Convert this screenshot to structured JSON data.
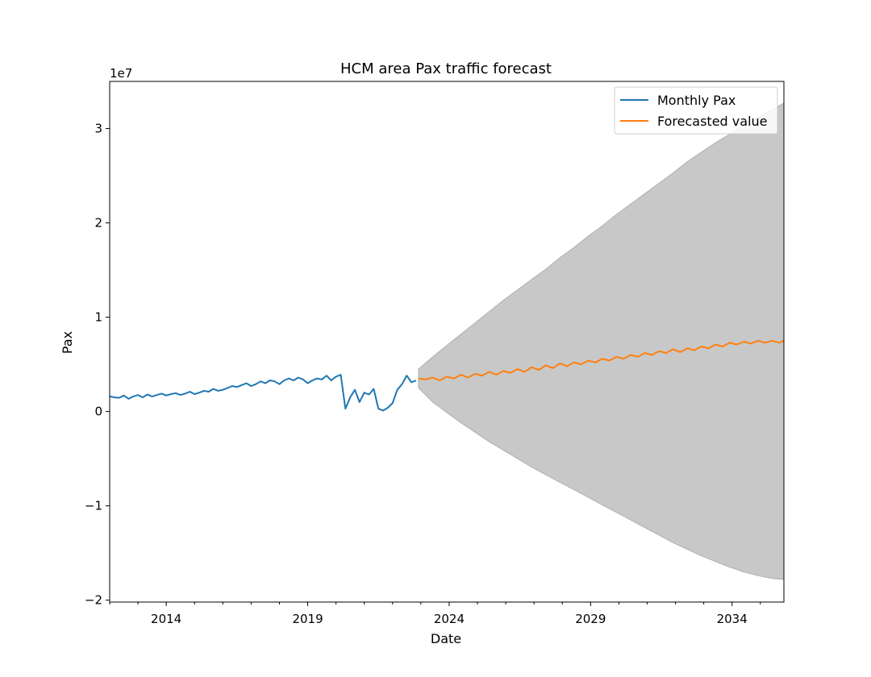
{
  "chart_data": {
    "type": "line",
    "title": "HCM area Pax traffic forecast",
    "xlabel": "Date",
    "ylabel": "Pax",
    "y_offset_text": "1e7",
    "xlim": [
      "2012-01",
      "2035-11"
    ],
    "ylim": [
      -20200000,
      35000000
    ],
    "x_ticks": [
      {
        "label": "2014",
        "value": "2014-01"
      },
      {
        "label": "2019",
        "value": "2019-01"
      },
      {
        "label": "2024",
        "value": "2024-01"
      },
      {
        "label": "2029",
        "value": "2029-01"
      },
      {
        "label": "2034",
        "value": "2034-01"
      }
    ],
    "y_ticks": [
      {
        "label": "−2",
        "value": -20000000
      },
      {
        "label": "−1",
        "value": -10000000
      },
      {
        "label": "0",
        "value": 0
      },
      {
        "label": "1",
        "value": 10000000
      },
      {
        "label": "2",
        "value": 20000000
      },
      {
        "label": "3",
        "value": 30000000
      }
    ],
    "grid": false,
    "legend_position": "top-right",
    "colors": {
      "actual": "#1f77b4",
      "forecast": "#ff7f0e",
      "band": "#c8c8c8",
      "band_edge": "#b0b0b0"
    },
    "series": [
      {
        "name": "Monthly Pax",
        "x": [
          "2012-01",
          "2012-03",
          "2012-05",
          "2012-07",
          "2012-09",
          "2012-11",
          "2013-01",
          "2013-03",
          "2013-05",
          "2013-07",
          "2013-09",
          "2013-11",
          "2014-01",
          "2014-03",
          "2014-05",
          "2014-07",
          "2014-09",
          "2014-11",
          "2015-01",
          "2015-03",
          "2015-05",
          "2015-07",
          "2015-09",
          "2015-11",
          "2016-01",
          "2016-03",
          "2016-05",
          "2016-07",
          "2016-09",
          "2016-11",
          "2017-01",
          "2017-03",
          "2017-05",
          "2017-07",
          "2017-09",
          "2017-11",
          "2018-01",
          "2018-03",
          "2018-05",
          "2018-07",
          "2018-09",
          "2018-11",
          "2019-01",
          "2019-03",
          "2019-05",
          "2019-07",
          "2019-09",
          "2019-11",
          "2020-01",
          "2020-03",
          "2020-05",
          "2020-07",
          "2020-09",
          "2020-11",
          "2021-01",
          "2021-03",
          "2021-05",
          "2021-07",
          "2021-09",
          "2021-11",
          "2022-01",
          "2022-03",
          "2022-05",
          "2022-07",
          "2022-09",
          "2022-11"
        ],
        "y": [
          1600000,
          1500000,
          1450000,
          1700000,
          1350000,
          1600000,
          1750000,
          1500000,
          1800000,
          1600000,
          1750000,
          1900000,
          1700000,
          1850000,
          1950000,
          1750000,
          1900000,
          2100000,
          1850000,
          2000000,
          2200000,
          2100000,
          2400000,
          2200000,
          2300000,
          2500000,
          2700000,
          2600000,
          2800000,
          3000000,
          2700000,
          2900000,
          3200000,
          3000000,
          3300000,
          3200000,
          2900000,
          3300000,
          3500000,
          3300000,
          3600000,
          3400000,
          3000000,
          3300000,
          3500000,
          3400000,
          3800000,
          3300000,
          3700000,
          3900000,
          300000,
          1500000,
          2300000,
          1000000,
          2000000,
          1800000,
          2400000,
          300000,
          100000,
          400000,
          900000,
          2300000,
          2900000,
          3800000,
          3100000,
          3300000
        ]
      },
      {
        "name": "Forecasted value",
        "x": [
          "2022-12",
          "2023-03",
          "2023-06",
          "2023-09",
          "2023-12",
          "2024-03",
          "2024-06",
          "2024-09",
          "2024-12",
          "2025-03",
          "2025-06",
          "2025-09",
          "2025-12",
          "2026-03",
          "2026-06",
          "2026-09",
          "2026-12",
          "2027-03",
          "2027-06",
          "2027-09",
          "2027-12",
          "2028-03",
          "2028-06",
          "2028-09",
          "2028-12",
          "2029-03",
          "2029-06",
          "2029-09",
          "2029-12",
          "2030-03",
          "2030-06",
          "2030-09",
          "2030-12",
          "2031-03",
          "2031-06",
          "2031-09",
          "2031-12",
          "2032-03",
          "2032-06",
          "2032-09",
          "2032-12",
          "2033-03",
          "2033-06",
          "2033-09",
          "2033-12",
          "2034-03",
          "2034-06",
          "2034-09",
          "2034-12",
          "2035-03",
          "2035-06",
          "2035-09",
          "2035-11"
        ],
        "y": [
          3500000,
          3400000,
          3600000,
          3300000,
          3700000,
          3500000,
          3900000,
          3600000,
          4000000,
          3800000,
          4200000,
          3900000,
          4300000,
          4100000,
          4500000,
          4200000,
          4700000,
          4400000,
          4900000,
          4600000,
          5100000,
          4800000,
          5200000,
          5000000,
          5400000,
          5200000,
          5600000,
          5400000,
          5800000,
          5600000,
          6000000,
          5800000,
          6200000,
          6000000,
          6400000,
          6200000,
          6600000,
          6300000,
          6700000,
          6500000,
          6900000,
          6700000,
          7100000,
          6900000,
          7300000,
          7100000,
          7400000,
          7200000,
          7500000,
          7300000,
          7500000,
          7300000,
          7500000
        ]
      }
    ],
    "confidence_band": {
      "x": [
        "2022-12",
        "2023-06",
        "2023-12",
        "2024-06",
        "2024-12",
        "2025-06",
        "2025-12",
        "2026-06",
        "2026-12",
        "2027-06",
        "2027-12",
        "2028-06",
        "2028-12",
        "2029-06",
        "2029-12",
        "2030-06",
        "2030-12",
        "2031-06",
        "2031-12",
        "2032-06",
        "2032-12",
        "2033-06",
        "2033-12",
        "2034-06",
        "2034-12",
        "2035-06",
        "2035-11"
      ],
      "upper": [
        4500000,
        5800000,
        7000000,
        8200000,
        9400000,
        10600000,
        11800000,
        12900000,
        14000000,
        15100000,
        16300000,
        17400000,
        18600000,
        19700000,
        20900000,
        22000000,
        23100000,
        24200000,
        25300000,
        26500000,
        27500000,
        28500000,
        29400000,
        30300000,
        31200000,
        32000000,
        32700000
      ],
      "lower": [
        2500000,
        1000000,
        -100000,
        -1200000,
        -2200000,
        -3200000,
        -4100000,
        -5000000,
        -5900000,
        -6700000,
        -7500000,
        -8300000,
        -9100000,
        -9900000,
        -10700000,
        -11500000,
        -12300000,
        -13100000,
        -13900000,
        -14600000,
        -15300000,
        -15900000,
        -16500000,
        -17000000,
        -17400000,
        -17700000,
        -17800000
      ]
    }
  }
}
